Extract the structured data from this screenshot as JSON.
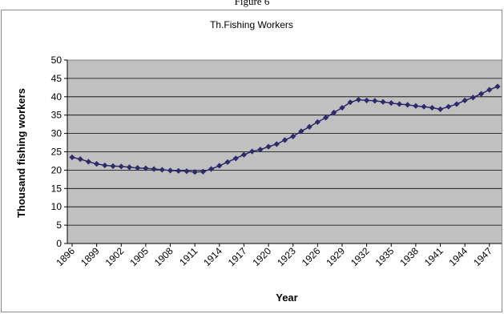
{
  "top_caption": "Figure 6",
  "chart_data": {
    "type": "line",
    "title": "Th.Fishing Workers",
    "xlabel": "Year",
    "ylabel": "Thousand fishing workers",
    "ylim": [
      0,
      50
    ],
    "yticks": [
      0,
      5,
      10,
      15,
      20,
      25,
      30,
      35,
      40,
      45,
      50
    ],
    "xtick_labels": [
      "1896",
      "1899",
      "1902",
      "1905",
      "1908",
      "1911",
      "1914",
      "1917",
      "1920",
      "1923",
      "1926",
      "1929",
      "1932",
      "1935",
      "1938",
      "1941",
      "1944",
      "1947"
    ],
    "grid": true,
    "plot_background": "#c0c0c0",
    "line_color": "#2e2a6b",
    "series": [
      {
        "name": "",
        "x": [
          1896,
          1897,
          1898,
          1899,
          1900,
          1901,
          1902,
          1903,
          1904,
          1905,
          1906,
          1907,
          1908,
          1909,
          1910,
          1911,
          1912,
          1913,
          1914,
          1915,
          1916,
          1917,
          1918,
          1919,
          1920,
          1921,
          1922,
          1923,
          1924,
          1925,
          1926,
          1927,
          1928,
          1929,
          1930,
          1931,
          1932,
          1933,
          1934,
          1935,
          1936,
          1937,
          1938,
          1939,
          1940,
          1941,
          1942,
          1943,
          1944,
          1945,
          1946,
          1947,
          1948
        ],
        "values": [
          23.5,
          23.0,
          22.3,
          21.7,
          21.3,
          21.1,
          21.0,
          20.8,
          20.6,
          20.5,
          20.3,
          20.1,
          19.9,
          19.8,
          19.7,
          19.5,
          19.6,
          20.3,
          21.2,
          22.2,
          23.2,
          24.2,
          25.1,
          25.6,
          26.4,
          27.1,
          28.2,
          29.2,
          30.6,
          31.8,
          33.1,
          34.3,
          35.7,
          37.0,
          38.5,
          39.2,
          39.0,
          38.9,
          38.6,
          38.3,
          38.0,
          37.8,
          37.5,
          37.3,
          37.0,
          36.6,
          37.3,
          38.0,
          39.0,
          39.8,
          40.8,
          41.9,
          42.8
        ]
      }
    ]
  }
}
